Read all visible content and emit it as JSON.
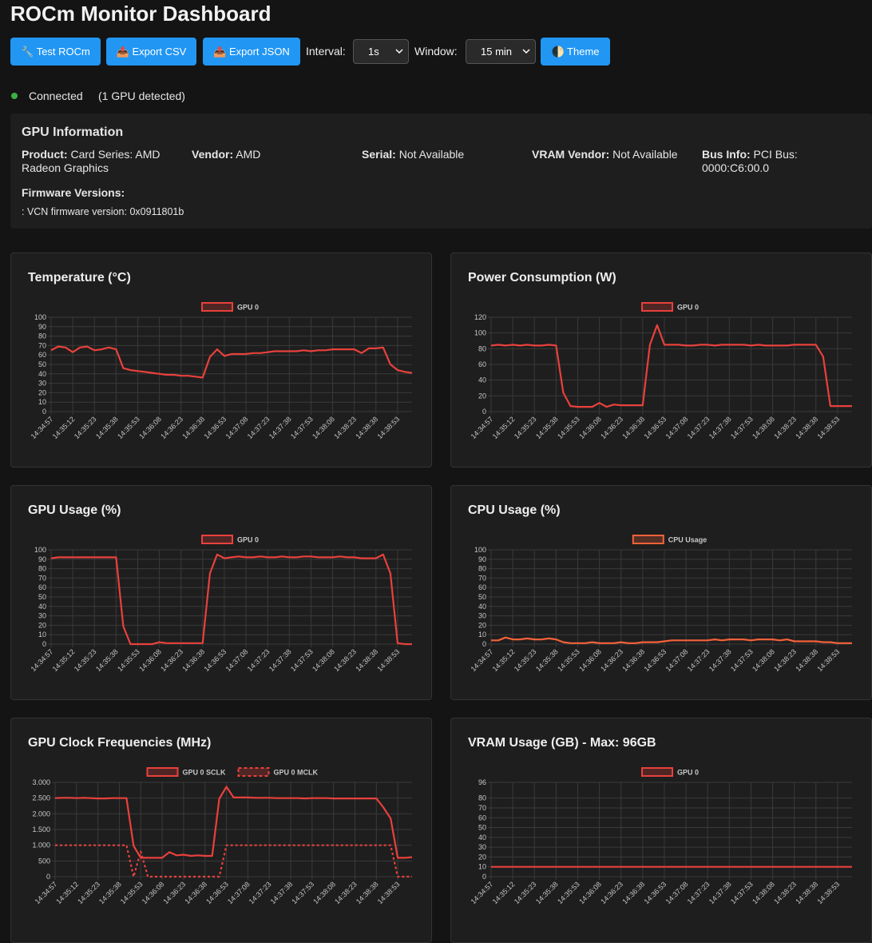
{
  "header": {
    "title": "ROCm Monitor Dashboard"
  },
  "toolbar": {
    "buttons": [
      "🔧 Test ROCm",
      "📤 Export CSV",
      "📤 Export JSON"
    ],
    "interval": {
      "label": "Interval:",
      "value": "1s"
    },
    "window": {
      "label": "Window:",
      "value": "15 min"
    },
    "theme": "🌓 Theme"
  },
  "status": {
    "state": "Connected",
    "detail": "(1 GPU detected)"
  },
  "gpu_info": {
    "title": "GPU Information",
    "fields": [
      {
        "label": "Product:",
        "value": "Card Series: AMD Radeon Graphics"
      },
      {
        "label": "Vendor:",
        "value": "AMD"
      },
      {
        "label": "Serial:",
        "value": "Not Available"
      },
      {
        "label": "VRAM Vendor:",
        "value": "Not Available"
      },
      {
        "label": "Bus Info:",
        "value": "PCI Bus: 0000:C6:00.0"
      }
    ],
    "firmware_title": "Firmware Versions:",
    "firmware": [
      ": VCN firmware version: 0x0911801b"
    ]
  },
  "chart_data": [
    {
      "type": "line",
      "title": "Temperature (°C)",
      "grid": true,
      "legend": "top",
      "categories": [
        "14:34:57",
        null,
        null,
        "14:35:12",
        null,
        null,
        "14:35:23",
        null,
        null,
        "14:35:38",
        null,
        null,
        "14:35:53",
        null,
        null,
        "14:36:08",
        null,
        null,
        "14:36:23",
        null,
        null,
        "14:36:38",
        null,
        null,
        "14:36:53",
        null,
        null,
        "14:37:08",
        null,
        null,
        "14:37:23",
        null,
        null,
        "14:37:38",
        null,
        null,
        "14:37:53",
        null,
        null,
        "14:38:08",
        null,
        null,
        "14:38:23",
        null,
        null,
        "14:38:38",
        null,
        null,
        "14:38:53",
        null,
        null
      ],
      "ylim": [
        0,
        100
      ],
      "yticks": [
        0,
        10,
        20,
        30,
        40,
        50,
        60,
        70,
        80,
        90,
        100
      ],
      "series": [
        {
          "name": "GPU 0",
          "color": "#e8413c",
          "line_style": "solid",
          "values": [
            65,
            69,
            68,
            63,
            68,
            69,
            65,
            66,
            68,
            66,
            46,
            44,
            43,
            42,
            41,
            40,
            39,
            39,
            38,
            38,
            37,
            36,
            58,
            66,
            59,
            61,
            61,
            61,
            62,
            62,
            63,
            64,
            64,
            64,
            64,
            65,
            64,
            65,
            65,
            66,
            66,
            66,
            66,
            62,
            67,
            67,
            68,
            50,
            44,
            42,
            41
          ]
        }
      ]
    },
    {
      "type": "line",
      "title": "Power Consumption (W)",
      "grid": true,
      "legend": "top",
      "categories": [
        "14:34:57",
        null,
        null,
        "14:35:12",
        null,
        null,
        "14:35:23",
        null,
        null,
        "14:35:38",
        null,
        null,
        "14:35:53",
        null,
        null,
        "14:36:08",
        null,
        null,
        "14:36:23",
        null,
        null,
        "14:36:38",
        null,
        null,
        "14:36:53",
        null,
        null,
        "14:37:08",
        null,
        null,
        "14:37:23",
        null,
        null,
        "14:37:38",
        null,
        null,
        "14:37:53",
        null,
        null,
        "14:38:08",
        null,
        null,
        "14:38:23",
        null,
        null,
        "14:38:38",
        null,
        null,
        "14:38:53",
        null,
        null
      ],
      "ylim": [
        0,
        120
      ],
      "yticks": [
        0,
        20,
        40,
        60,
        80,
        100,
        120
      ],
      "series": [
        {
          "name": "GPU 0",
          "color": "#e8413c",
          "line_style": "solid",
          "values": [
            84,
            85,
            84,
            85,
            84,
            85,
            84,
            84,
            85,
            84,
            24,
            7,
            6,
            6,
            6,
            11,
            6,
            9,
            8,
            8,
            8,
            8,
            85,
            110,
            85,
            85,
            85,
            84,
            84,
            85,
            85,
            84,
            85,
            85,
            85,
            85,
            84,
            85,
            84,
            84,
            84,
            84,
            85,
            85,
            85,
            85,
            70,
            7,
            7,
            7,
            7
          ]
        }
      ]
    },
    {
      "type": "line",
      "title": "GPU Usage (%)",
      "grid": true,
      "legend": "top",
      "categories": [
        "14:34:57",
        null,
        null,
        "14:35:12",
        null,
        null,
        "14:35:23",
        null,
        null,
        "14:35:38",
        null,
        null,
        "14:35:53",
        null,
        null,
        "14:36:08",
        null,
        null,
        "14:36:23",
        null,
        null,
        "14:36:38",
        null,
        null,
        "14:36:53",
        null,
        null,
        "14:37:08",
        null,
        null,
        "14:37:23",
        null,
        null,
        "14:37:38",
        null,
        null,
        "14:37:53",
        null,
        null,
        "14:38:08",
        null,
        null,
        "14:38:23",
        null,
        null,
        "14:38:38",
        null,
        null,
        "14:38:53",
        null,
        null
      ],
      "ylim": [
        0,
        100
      ],
      "yticks": [
        0,
        10,
        20,
        30,
        40,
        50,
        60,
        70,
        80,
        90,
        100
      ],
      "series": [
        {
          "name": "GPU 0",
          "color": "#e8413c",
          "line_style": "solid",
          "values": [
            91,
            92,
            92,
            92,
            92,
            92,
            92,
            92,
            92,
            92,
            19,
            0,
            0,
            0,
            0,
            2,
            1,
            1,
            1,
            1,
            1,
            1,
            75,
            95,
            91,
            92,
            93,
            92,
            92,
            93,
            92,
            92,
            93,
            92,
            92,
            93,
            93,
            92,
            92,
            92,
            93,
            92,
            92,
            91,
            91,
            91,
            95,
            75,
            1,
            0,
            0
          ]
        }
      ]
    },
    {
      "type": "line",
      "title": "CPU Usage (%)",
      "grid": true,
      "legend": "top",
      "categories": [
        "14:34:57",
        null,
        null,
        "14:35:12",
        null,
        null,
        "14:35:23",
        null,
        null,
        "14:35:38",
        null,
        null,
        "14:35:53",
        null,
        null,
        "14:36:08",
        null,
        null,
        "14:36:23",
        null,
        null,
        "14:36:38",
        null,
        null,
        "14:36:53",
        null,
        null,
        "14:37:08",
        null,
        null,
        "14:37:23",
        null,
        null,
        "14:37:38",
        null,
        null,
        "14:37:53",
        null,
        null,
        "14:38:08",
        null,
        null,
        "14:38:23",
        null,
        null,
        "14:38:38",
        null,
        null,
        "14:38:53",
        null,
        null
      ],
      "ylim": [
        0,
        100
      ],
      "yticks": [
        0,
        10,
        20,
        30,
        40,
        50,
        60,
        70,
        80,
        90,
        100
      ],
      "series": [
        {
          "name": "CPU Usage",
          "color": "#f4623a",
          "line_style": "solid",
          "values": [
            4,
            4,
            7,
            5,
            5,
            6,
            5,
            5,
            6,
            5,
            2,
            1,
            1,
            1,
            2,
            1,
            1,
            1,
            2,
            1,
            1,
            2,
            2,
            2,
            3,
            4,
            4,
            4,
            4,
            4,
            4,
            5,
            4,
            5,
            5,
            5,
            4,
            5,
            5,
            5,
            4,
            5,
            3,
            3,
            3,
            3,
            2,
            2,
            1,
            1,
            1
          ]
        }
      ]
    },
    {
      "type": "line",
      "title": "GPU Clock Frequencies (MHz)",
      "grid": true,
      "legend": "top",
      "categories": [
        "14:34:57",
        null,
        null,
        "14:35:12",
        null,
        null,
        "14:35:23",
        null,
        null,
        "14:35:38",
        null,
        null,
        "14:35:53",
        null,
        null,
        "14:36:08",
        null,
        null,
        "14:36:23",
        null,
        null,
        "14:36:38",
        null,
        null,
        "14:36:53",
        null,
        null,
        "14:37:08",
        null,
        null,
        "14:37:23",
        null,
        null,
        "14:37:38",
        null,
        null,
        "14:37:53",
        null,
        null,
        "14:38:08",
        null,
        null,
        "14:38:23",
        null,
        null,
        "14:38:38",
        null,
        null,
        "14:38:53",
        null,
        null
      ],
      "ylim": [
        0,
        3000
      ],
      "yticks": [
        0,
        500,
        {
          "value": 1000,
          "label": "1.000"
        },
        {
          "value": 1500,
          "label": "1.500"
        },
        {
          "value": 2000,
          "label": "2.000"
        },
        {
          "value": 2500,
          "label": "2.500"
        },
        {
          "value": 3000,
          "label": "3.000"
        }
      ],
      "series": [
        {
          "name": "GPU 0 SCLK",
          "color": "#e8413c",
          "line_style": "solid",
          "values": [
            2500,
            2510,
            2510,
            2500,
            2510,
            2500,
            2490,
            2490,
            2500,
            2500,
            2500,
            980,
            600,
            600,
            600,
            600,
            780,
            680,
            700,
            660,
            680,
            660,
            660,
            2480,
            2860,
            2520,
            2520,
            2520,
            2510,
            2510,
            2510,
            2500,
            2500,
            2500,
            2500,
            2490,
            2500,
            2500,
            2500,
            2490,
            2490,
            2490,
            2490,
            2490,
            2490,
            2490,
            2200,
            1850,
            600,
            600,
            620
          ]
        },
        {
          "name": "GPU 0 MCLK",
          "color": "#e8413c",
          "line_style": "dashed",
          "values": [
            1000,
            1000,
            1000,
            1000,
            1000,
            1000,
            1000,
            1000,
            1000,
            1000,
            1000,
            0,
            800,
            0,
            0,
            0,
            0,
            0,
            0,
            0,
            0,
            0,
            0,
            0,
            1000,
            1000,
            1000,
            1000,
            1000,
            1000,
            1000,
            1000,
            1000,
            1000,
            1000,
            1000,
            1000,
            1000,
            1000,
            1000,
            1000,
            1000,
            1000,
            1000,
            1000,
            1000,
            1000,
            1000,
            0,
            0,
            0
          ]
        }
      ]
    },
    {
      "type": "line",
      "title": "VRAM Usage (GB) - Max: 96GB",
      "grid": true,
      "legend": "top",
      "categories": [
        "14:34:57",
        null,
        null,
        "14:35:12",
        null,
        null,
        "14:35:23",
        null,
        null,
        "14:35:38",
        null,
        null,
        "14:35:53",
        null,
        null,
        "14:36:08",
        null,
        null,
        "14:36:23",
        null,
        null,
        "14:36:38",
        null,
        null,
        "14:36:53",
        null,
        null,
        "14:37:08",
        null,
        null,
        "14:37:23",
        null,
        null,
        "14:37:38",
        null,
        null,
        "14:37:53",
        null,
        null,
        "14:38:08",
        null,
        null,
        "14:38:23",
        null,
        null,
        "14:38:38",
        null,
        null,
        "14:38:53",
        null,
        null
      ],
      "ylim": [
        0,
        96
      ],
      "yticks": [
        0,
        10,
        20,
        30,
        40,
        50,
        60,
        70,
        80,
        96
      ],
      "series": [
        {
          "name": "GPU 0",
          "color": "#e8413c",
          "line_style": "solid",
          "values": [
            10,
            10,
            10,
            10,
            10,
            10,
            10,
            10,
            10,
            10,
            10,
            10,
            10,
            10,
            10,
            10,
            10,
            10,
            10,
            10,
            10,
            10,
            10,
            10,
            10,
            10,
            10,
            10,
            10,
            10,
            10,
            10,
            10,
            10,
            10,
            10,
            10,
            10,
            10,
            10,
            10,
            10,
            10,
            10,
            10,
            10,
            10,
            10,
            10,
            10,
            10
          ]
        }
      ]
    }
  ]
}
